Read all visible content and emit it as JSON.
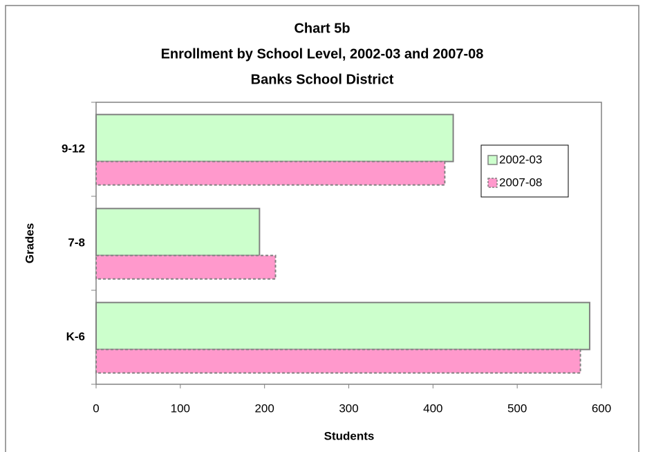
{
  "chart_data": {
    "type": "hbar",
    "title": [
      "Chart 5b",
      "Enrollment by School Level, 2002-03 and 2007-08",
      "Banks School District"
    ],
    "x_label": "Students",
    "y_label": "Grades",
    "categories": [
      "K-6",
      "7-8",
      "9-12"
    ],
    "series": [
      {
        "name": "2002-03",
        "color": "#ccffcc",
        "values": [
          586,
          194,
          424
        ]
      },
      {
        "name": "2007-08",
        "color": "#ff99cc",
        "values": [
          575,
          213,
          414
        ]
      }
    ],
    "xlim": [
      0,
      600
    ],
    "xticks": [
      0,
      100,
      200,
      300,
      400,
      500,
      600
    ],
    "legend": "right",
    "grid": false
  }
}
